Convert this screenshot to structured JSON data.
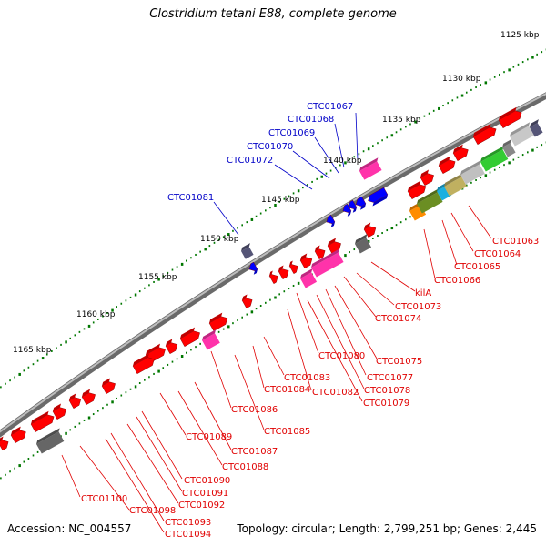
{
  "title": "Clostridium tetani E88, complete genome",
  "footer": {
    "accession": "Accession: NC_004557",
    "summary": "Topology: circular; Length: 2,799,251 bp; Genes: 2,445"
  },
  "ruler_labels": [
    "1125 kbp",
    "1130 kbp",
    "1135 kbp",
    "1140 kbp",
    "1145 kbp",
    "1150 kbp",
    "1155 kbp",
    "1160 kbp",
    "1165 kbp"
  ],
  "blue_labels": [
    "CTC01067",
    "CTC01068",
    "CTC01069",
    "CTC01070",
    "CTC01072",
    "CTC01081"
  ],
  "red_labels": [
    "CTC01063",
    "CTC01064",
    "CTC01065",
    "CTC01066",
    "kilA",
    "CTC01073",
    "CTC01074",
    "CTC01075",
    "CTC01080",
    "CTC01077",
    "CTC01078",
    "CTC01079",
    "CTC01083",
    "CTC01084",
    "CTC01082",
    "CTC01086",
    "CTC01085",
    "CTC01089",
    "CTC01087",
    "CTC01088",
    "CTC01090",
    "CTC01091",
    "CTC01092",
    "CTC01093",
    "CTC01094",
    "CTC01100",
    "CTC01098"
  ],
  "colors": {
    "backbone": "#808080",
    "forward_gene": "#ff0000",
    "reverse_gene": "#ff0000",
    "blue_gene": "#0000ff",
    "magenta_gene": "#ff33aa",
    "label_red": "#e00000",
    "label_blue": "#0000c8",
    "tick": "#007700"
  }
}
